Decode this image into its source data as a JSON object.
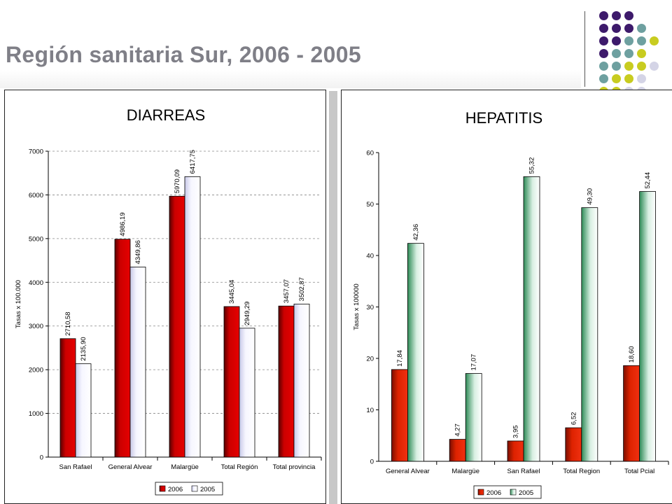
{
  "header": {
    "title": "Región sanitaria Sur, 2006 - 2005"
  },
  "decoration": {
    "dot_colors": [
      "#3d1a6b",
      "#6ea0a0",
      "#c8cc20",
      "#d4d4e6"
    ]
  },
  "chart_data": [
    {
      "type": "bar",
      "title": "DIARREAS",
      "ylabel": "Tasas x 100.000",
      "xlabel": "",
      "ylim": [
        0,
        7000
      ],
      "yticks": [
        "0",
        "1000",
        "2000",
        "3000",
        "4000",
        "5000",
        "6000",
        "7000"
      ],
      "grid": true,
      "legend_position": "bottom",
      "categories": [
        "San Rafael",
        "General Alvear",
        "Malargüe",
        "Total Región",
        "Total provincia"
      ],
      "series": [
        {
          "name": "2006",
          "color": "#cc0000",
          "values": [
            2710.58,
            4986.19,
            5970.09,
            3445.04,
            3457.07
          ],
          "labels": [
            "2710,58",
            "4986,19",
            "5970,09",
            "3445,04",
            "3457,07"
          ]
        },
        {
          "name": "2005",
          "color": "#f4f4ff",
          "values": [
            2135.9,
            4349.86,
            6417.75,
            2949.29,
            3502.87
          ],
          "labels": [
            "2135,90",
            "4349,86",
            "6417,75",
            "2949,29",
            "3502,87"
          ]
        }
      ]
    },
    {
      "type": "bar",
      "title": "HEPATITIS",
      "ylabel": "Tasas x 100000",
      "xlabel": "",
      "ylim": [
        0,
        60
      ],
      "yticks": [
        "0",
        "10",
        "20",
        "30",
        "40",
        "50",
        "60"
      ],
      "grid": false,
      "legend_position": "bottom",
      "categories": [
        "General Alvear",
        "Malargüe",
        "San Rafael",
        "Total  Region",
        "Total Pcial"
      ],
      "series": [
        {
          "name": "2006",
          "color": "#dd2200",
          "values": [
            17.84,
            4.27,
            3.95,
            6.52,
            18.6
          ],
          "labels": [
            "17,84",
            "4,27",
            "3,95",
            "6,52",
            "18,60"
          ]
        },
        {
          "name": "2005",
          "color": "#2e8b57",
          "values": [
            42.36,
            17.07,
            55.32,
            49.3,
            52.44
          ],
          "labels": [
            "42,36",
            "17,07",
            "55,32",
            "49,30",
            "52,44"
          ]
        }
      ]
    }
  ]
}
